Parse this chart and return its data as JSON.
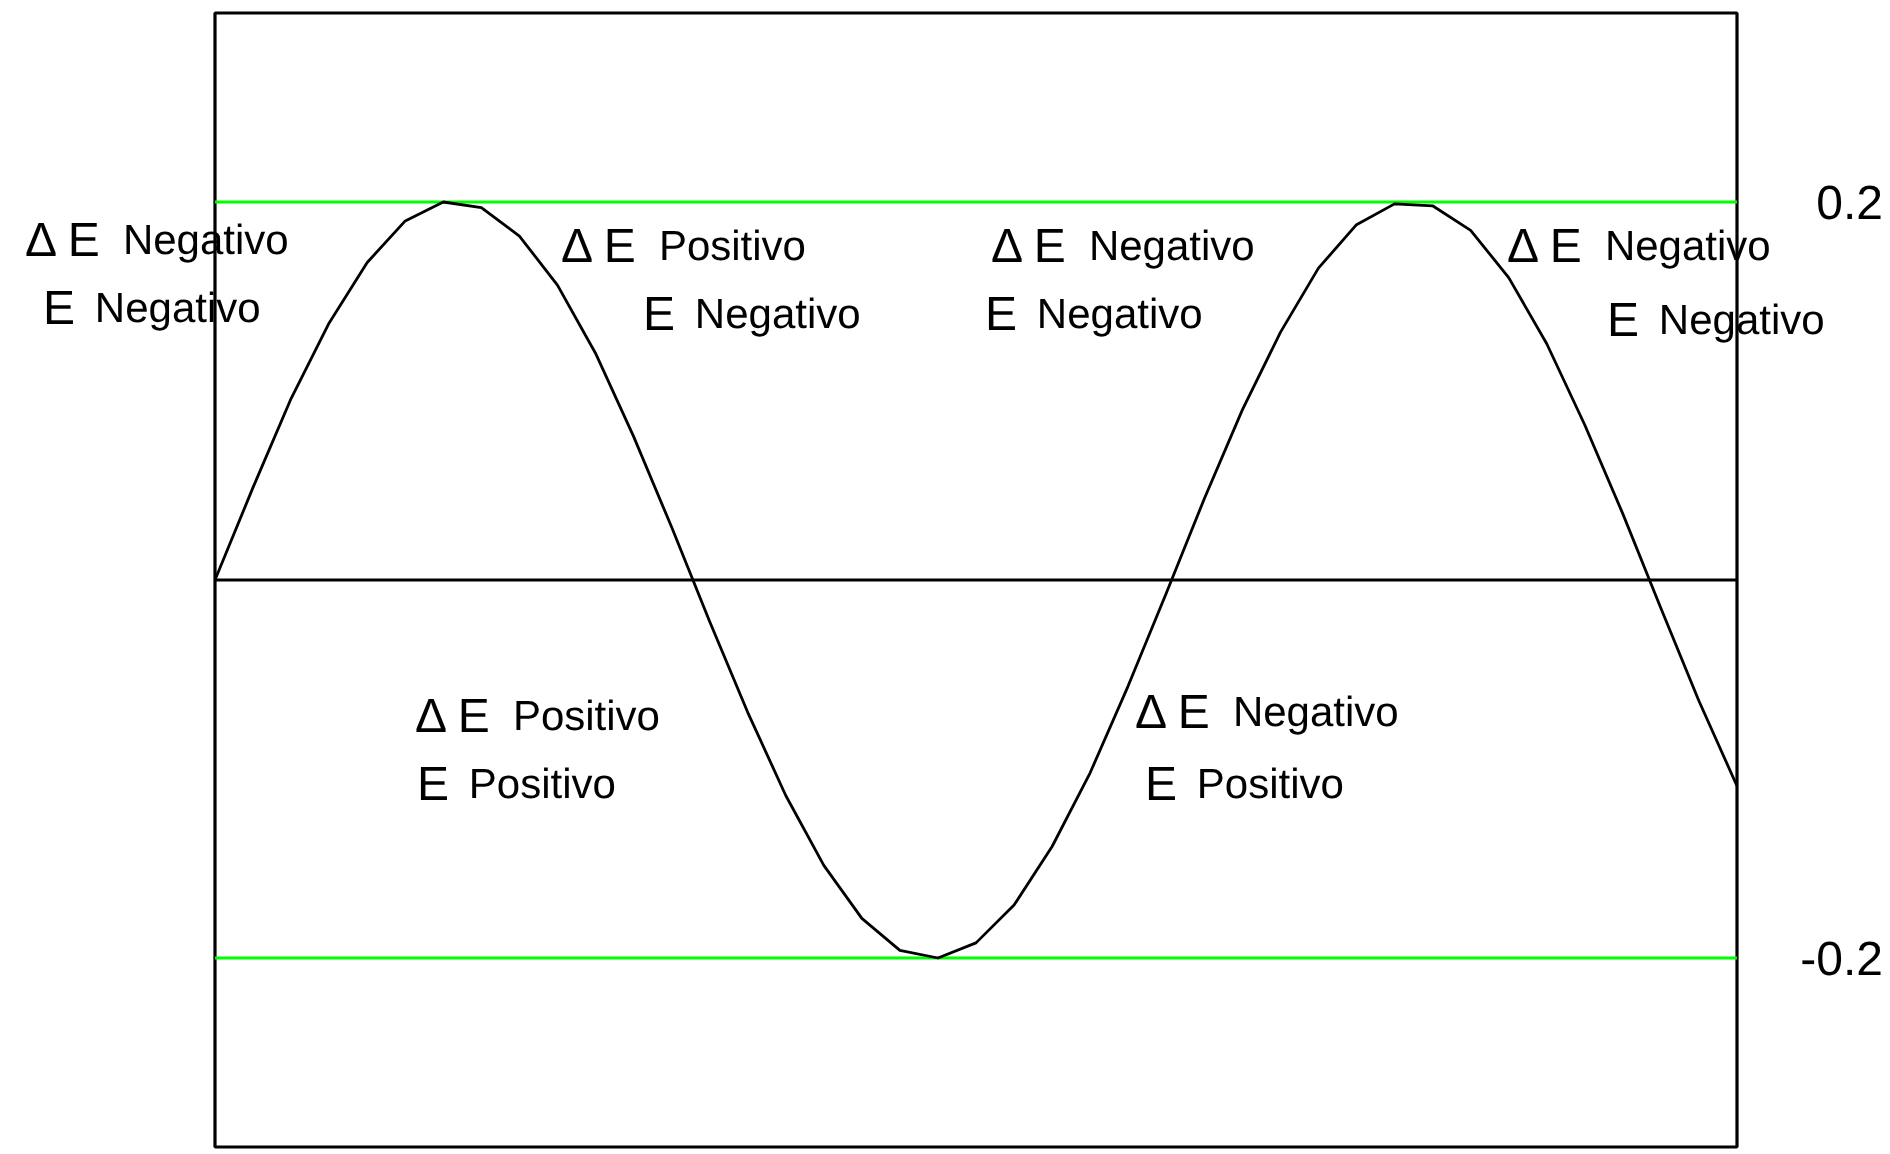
{
  "chart_data": {
    "type": "line",
    "categories": [
      null,
      null,
      null,
      null,
      null,
      null,
      null,
      null,
      null,
      null,
      null,
      null,
      null,
      null,
      null,
      null,
      null,
      null,
      null,
      null,
      null,
      null,
      null,
      null,
      null,
      null,
      null,
      null,
      null,
      null,
      null,
      null,
      null,
      null,
      null,
      null,
      null,
      null,
      null,
      null,
      null
    ],
    "series": [
      {
        "color": "#000000",
        "values": [
          0,
          0.049,
          0.096,
          0.136,
          0.168,
          0.19,
          0.2,
          0.197,
          0.182,
          0.156,
          0.12,
          0.076,
          0.028,
          -0.022,
          -0.07,
          -0.114,
          -0.151,
          -0.179,
          -0.196,
          -0.2,
          -0.192,
          -0.172,
          -0.141,
          -0.102,
          -0.056,
          -0.007,
          0.043,
          0.09,
          0.131,
          0.165,
          0.188,
          0.199,
          0.198,
          0.185,
          0.16,
          0.125,
          0.082,
          0.035,
          -0.015,
          -0.064,
          -0.109
        ]
      }
    ],
    "ylim": [
      -0.3,
      0.3
    ],
    "yticks": [
      -0.2,
      0.2
    ],
    "tick_labels": "y",
    "grid": "y",
    "ref_lines": [
      {
        "axis": "y",
        "value": 0,
        "color": "#000000"
      }
    ],
    "annotations": [
      "Δ E Negativo",
      "E Negativo",
      "Δ E Positivo",
      "E Negativo",
      "Δ E Negativo",
      "E Negativo",
      "Δ E Negativo",
      "E Negativo",
      "Δ E Positivo",
      "E Positivo",
      "Δ E Negativo",
      "E Positivo"
    ]
  }
}
